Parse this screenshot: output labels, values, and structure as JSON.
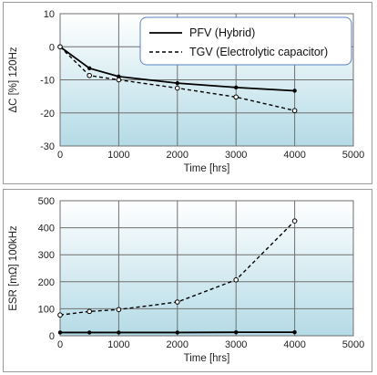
{
  "chart_data": [
    {
      "type": "line",
      "xlabel": "Time  [hrs]",
      "ylabel": "ΔC [%] 120Hz",
      "xlim": [
        0,
        5000
      ],
      "ylim": [
        -30,
        10
      ],
      "x_ticks": [
        "0",
        "1000",
        "2000",
        "3000",
        "4000",
        "5000"
      ],
      "y_ticks": [
        "10",
        "0",
        "-10",
        "-20",
        "-30"
      ],
      "grid": true,
      "legend": "top-right",
      "series": [
        {
          "name": "PFV (Hybrid)",
          "style": "solid",
          "x": [
            0,
            500,
            1000,
            2000,
            3000,
            4000
          ],
          "y": [
            0,
            -6.5,
            -9,
            -11,
            -12.3,
            -13.3
          ]
        },
        {
          "name": "TGV (Electrolytic capacitor)",
          "style": "dashed",
          "x": [
            0,
            500,
            1000,
            2000,
            3000,
            4000
          ],
          "y": [
            0,
            -8.7,
            -10,
            -12.5,
            -15.2,
            -19.3
          ]
        }
      ]
    },
    {
      "type": "line",
      "xlabel": "Time  [hrs]",
      "ylabel": "ESR [mΩ] 100kHz",
      "xlim": [
        0,
        5000
      ],
      "ylim": [
        0,
        500
      ],
      "x_ticks": [
        "0",
        "1000",
        "2000",
        "3000",
        "4000",
        "5000"
      ],
      "y_ticks": [
        "500",
        "400",
        "300",
        "200",
        "100",
        "0"
      ],
      "grid": true,
      "series": [
        {
          "style": "solid",
          "x": [
            0,
            500,
            1000,
            2000,
            3000,
            4000
          ],
          "y": [
            12,
            12,
            12,
            12,
            13,
            13
          ]
        },
        {
          "style": "dashed",
          "x": [
            0,
            500,
            1000,
            2000,
            3000,
            4000
          ],
          "y": [
            77,
            90,
            97,
            125,
            207,
            425
          ]
        }
      ]
    }
  ],
  "colors": {
    "plot_top": "#ffffff",
    "plot_bottom": "#b4dbe6",
    "grid": "#6f6f6f",
    "line": "#000000",
    "legend_border": "#5b82c2"
  }
}
